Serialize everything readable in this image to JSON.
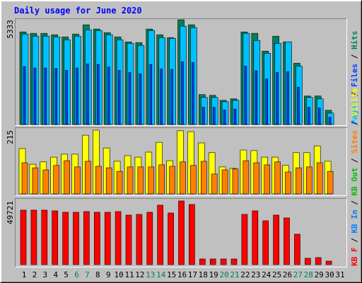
{
  "chart_data": [
    {
      "type": "bar",
      "title": "Daily usage for June 2020",
      "legend_separator": " / ",
      "ylim": [
        0,
        5333
      ],
      "yticks": [
        5333
      ],
      "series": [
        {
          "name": "Pages",
          "color": "#00c0ff",
          "values": [
            4608,
            4499,
            4499,
            4462,
            4317,
            4499,
            4825,
            4789,
            4571,
            4317,
            4136,
            4027,
            4789,
            4426,
            4390,
            5007,
            4934,
            1379,
            1379,
            1161,
            1234,
            4644,
            4281,
            3628,
            4136,
            4208,
            2975,
            1379,
            1306,
            580,
            null
          ]
        },
        {
          "name": "Files",
          "color": "#0040ff",
          "values": [
            2950,
            2880,
            2880,
            2860,
            2760,
            2880,
            3090,
            3060,
            2930,
            2760,
            2650,
            2580,
            3060,
            2830,
            2810,
            3200,
            3160,
            880,
            880,
            740,
            790,
            2970,
            2740,
            2320,
            2650,
            2690,
            1900,
            880,
            840,
            370,
            null
          ]
        },
        {
          "name": "Hits",
          "color": "#00805c",
          "values": [
            4716,
            4644,
            4644,
            4571,
            4462,
            4608,
            5079,
            4862,
            4680,
            4462,
            4208,
            4172,
            4862,
            4571,
            4426,
            5333,
            5079,
            1524,
            1487,
            1234,
            1306,
            4716,
            4644,
            3737,
            4499,
            4208,
            3120,
            1451,
            1451,
            726,
            null
          ]
        }
      ]
    },
    {
      "type": "bar",
      "ylim": [
        0,
        215
      ],
      "yticks": [
        215
      ],
      "series": [
        {
          "name": "Sites",
          "color": "#ff8000",
          "values": [
            105,
            88,
            81,
            96,
            112,
            91,
            110,
            93,
            88,
            76,
            91,
            91,
            91,
            98,
            93,
            108,
            96,
            110,
            67,
            81,
            84,
            112,
            105,
            98,
            108,
            74,
            88,
            91,
            105,
            76,
            null
          ]
        },
        {
          "name": "Visits",
          "color": "#ffff00",
          "values": [
            153,
            100,
            108,
            124,
            134,
            134,
            198,
            215,
            155,
            110,
            129,
            124,
            141,
            174,
            112,
            213,
            210,
            172,
            139,
            91,
            86,
            148,
            146,
            124,
            124,
            96,
            139,
            139,
            162,
            110,
            null
          ]
        }
      ]
    },
    {
      "type": "bar",
      "ylim": [
        0,
        49721
      ],
      "yticks": [
        49721
      ],
      "categories": [
        "1",
        "2",
        "3",
        "4",
        "5",
        "6",
        "7",
        "8",
        "9",
        "10",
        "11",
        "12",
        "13",
        "14",
        "15",
        "16",
        "17",
        "18",
        "19",
        "20",
        "21",
        "22",
        "23",
        "24",
        "25",
        "26",
        "27",
        "28",
        "29",
        "30",
        "31"
      ],
      "category_colors": [
        "#000000",
        "#000000",
        "#000000",
        "#000000",
        "#000000",
        "#00805c",
        "#00805c",
        "#000000",
        "#000000",
        "#000000",
        "#000000",
        "#000000",
        "#00805c",
        "#00805c",
        "#000000",
        "#000000",
        "#000000",
        "#000000",
        "#000000",
        "#00805c",
        "#00805c",
        "#000000",
        "#000000",
        "#000000",
        "#000000",
        "#000000",
        "#00805c",
        "#00805c",
        "#000000",
        "#000000",
        "#000000"
      ],
      "series": [
        {
          "name": "KB F",
          "color": "#ff0000",
          "values": [
            42542,
            42542,
            42542,
            41990,
            40885,
            40885,
            41437,
            40885,
            40885,
            41437,
            38675,
            39227,
            40885,
            46410,
            40332,
            49721,
            46962,
            4420,
            4420,
            4420,
            4420,
            39227,
            41990,
            34255,
            38675,
            36465,
            23757,
            4972,
            5525,
            2762,
            null
          ]
        },
        {
          "name": "KB In",
          "color": "#0080ff"
        },
        {
          "name": "KB Out",
          "color": "#00c000"
        }
      ]
    }
  ]
}
